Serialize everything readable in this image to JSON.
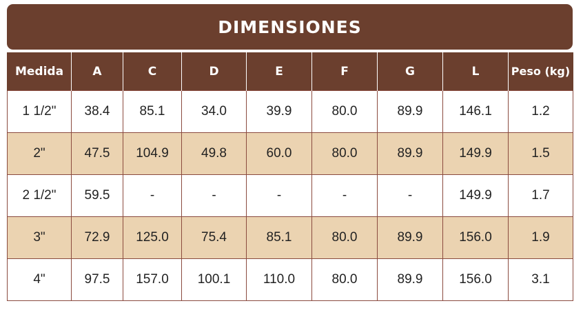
{
  "title": "DIMENSIONES",
  "headers": [
    "Medida",
    "A",
    "C",
    "D",
    "E",
    "F",
    "G",
    "L",
    "Peso (kg)"
  ],
  "rows": [
    [
      "1 1/2\"",
      "38.4",
      "85.1",
      "34.0",
      "39.9",
      "80.0",
      "89.9",
      "146.1",
      "1.2"
    ],
    [
      "2\"",
      "47.5",
      "104.9",
      "49.8",
      "60.0",
      "80.0",
      "89.9",
      "149.9",
      "1.5"
    ],
    [
      "2 1/2\"",
      "59.5",
      "-",
      "-",
      "-",
      "-",
      "-",
      "149.9",
      "1.7"
    ],
    [
      "3\"",
      "72.9",
      "125.0",
      "75.4",
      "85.1",
      "80.0",
      "89.9",
      "156.0",
      "1.9"
    ],
    [
      "4\"",
      "97.5",
      "157.0",
      "100.1",
      "110.0",
      "80.0",
      "89.9",
      "156.0",
      "3.1"
    ]
  ],
  "colors": {
    "header_bg": "#6b3f2e",
    "alt_row_bg": "#ebd3b1",
    "border": "#8a4a3e"
  }
}
